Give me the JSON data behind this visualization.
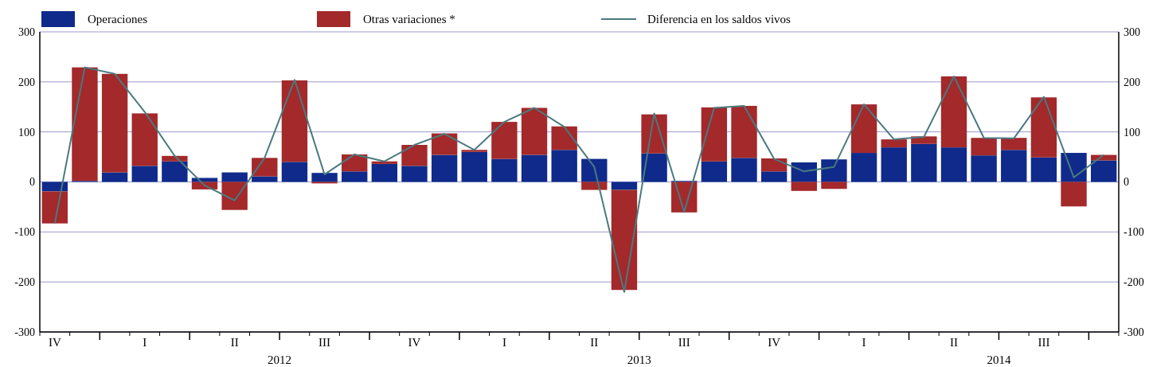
{
  "chart_data": {
    "type": "bar",
    "stacked": true,
    "categories": [
      "IV",
      null,
      null,
      "I",
      null,
      null,
      "II",
      null,
      null,
      "III",
      null,
      null,
      "IV",
      null,
      null,
      "I",
      null,
      null,
      "II",
      null,
      null,
      "III",
      null,
      null,
      "IV",
      null,
      null,
      "I",
      null,
      null,
      "II",
      null,
      null,
      "III",
      null,
      null
    ],
    "series": [
      {
        "name": "Operaciones",
        "color": "#0f2a8a",
        "values": [
          -19,
          2,
          19,
          32,
          41,
          8,
          19,
          11,
          40,
          18,
          21,
          36,
          32,
          54,
          60,
          46,
          54,
          64,
          46,
          -16,
          57,
          2,
          41,
          48,
          21,
          39,
          45,
          58,
          69,
          76,
          69,
          53,
          64,
          49,
          58,
          43
        ]
      },
      {
        "name": "Otras variaciones *",
        "color": "#a3292b",
        "values": [
          -64,
          227,
          197,
          105,
          11,
          -15,
          -56,
          37,
          163,
          -3,
          34,
          5,
          42,
          43,
          4,
          74,
          94,
          47,
          -16,
          -200,
          78,
          -61,
          108,
          104,
          26,
          -18,
          -14,
          97,
          16,
          15,
          142,
          35,
          24,
          120,
          -49,
          11
        ]
      },
      {
        "name": "Diferencia en los saldos vivos",
        "type": "line",
        "color": "#4a7a80",
        "values": [
          -83,
          229,
          216,
          140,
          52,
          -7,
          -37,
          48,
          204,
          15,
          55,
          41,
          74,
          96,
          64,
          120,
          148,
          110,
          30,
          -220,
          137,
          -60,
          148,
          152,
          46,
          21,
          30,
          155,
          85,
          90,
          211,
          88,
          87,
          170,
          9,
          54
        ]
      }
    ],
    "ylim": [
      -300,
      300
    ],
    "yticks": [
      -300,
      -200,
      -100,
      0,
      100,
      200,
      300
    ],
    "y2lim": [
      -300,
      300
    ],
    "y2ticks": [
      -300,
      -200,
      -100,
      0,
      100,
      200,
      300
    ],
    "grid": "y",
    "legend": "top",
    "annotations": [
      "2012",
      "2013",
      "2014"
    ]
  }
}
